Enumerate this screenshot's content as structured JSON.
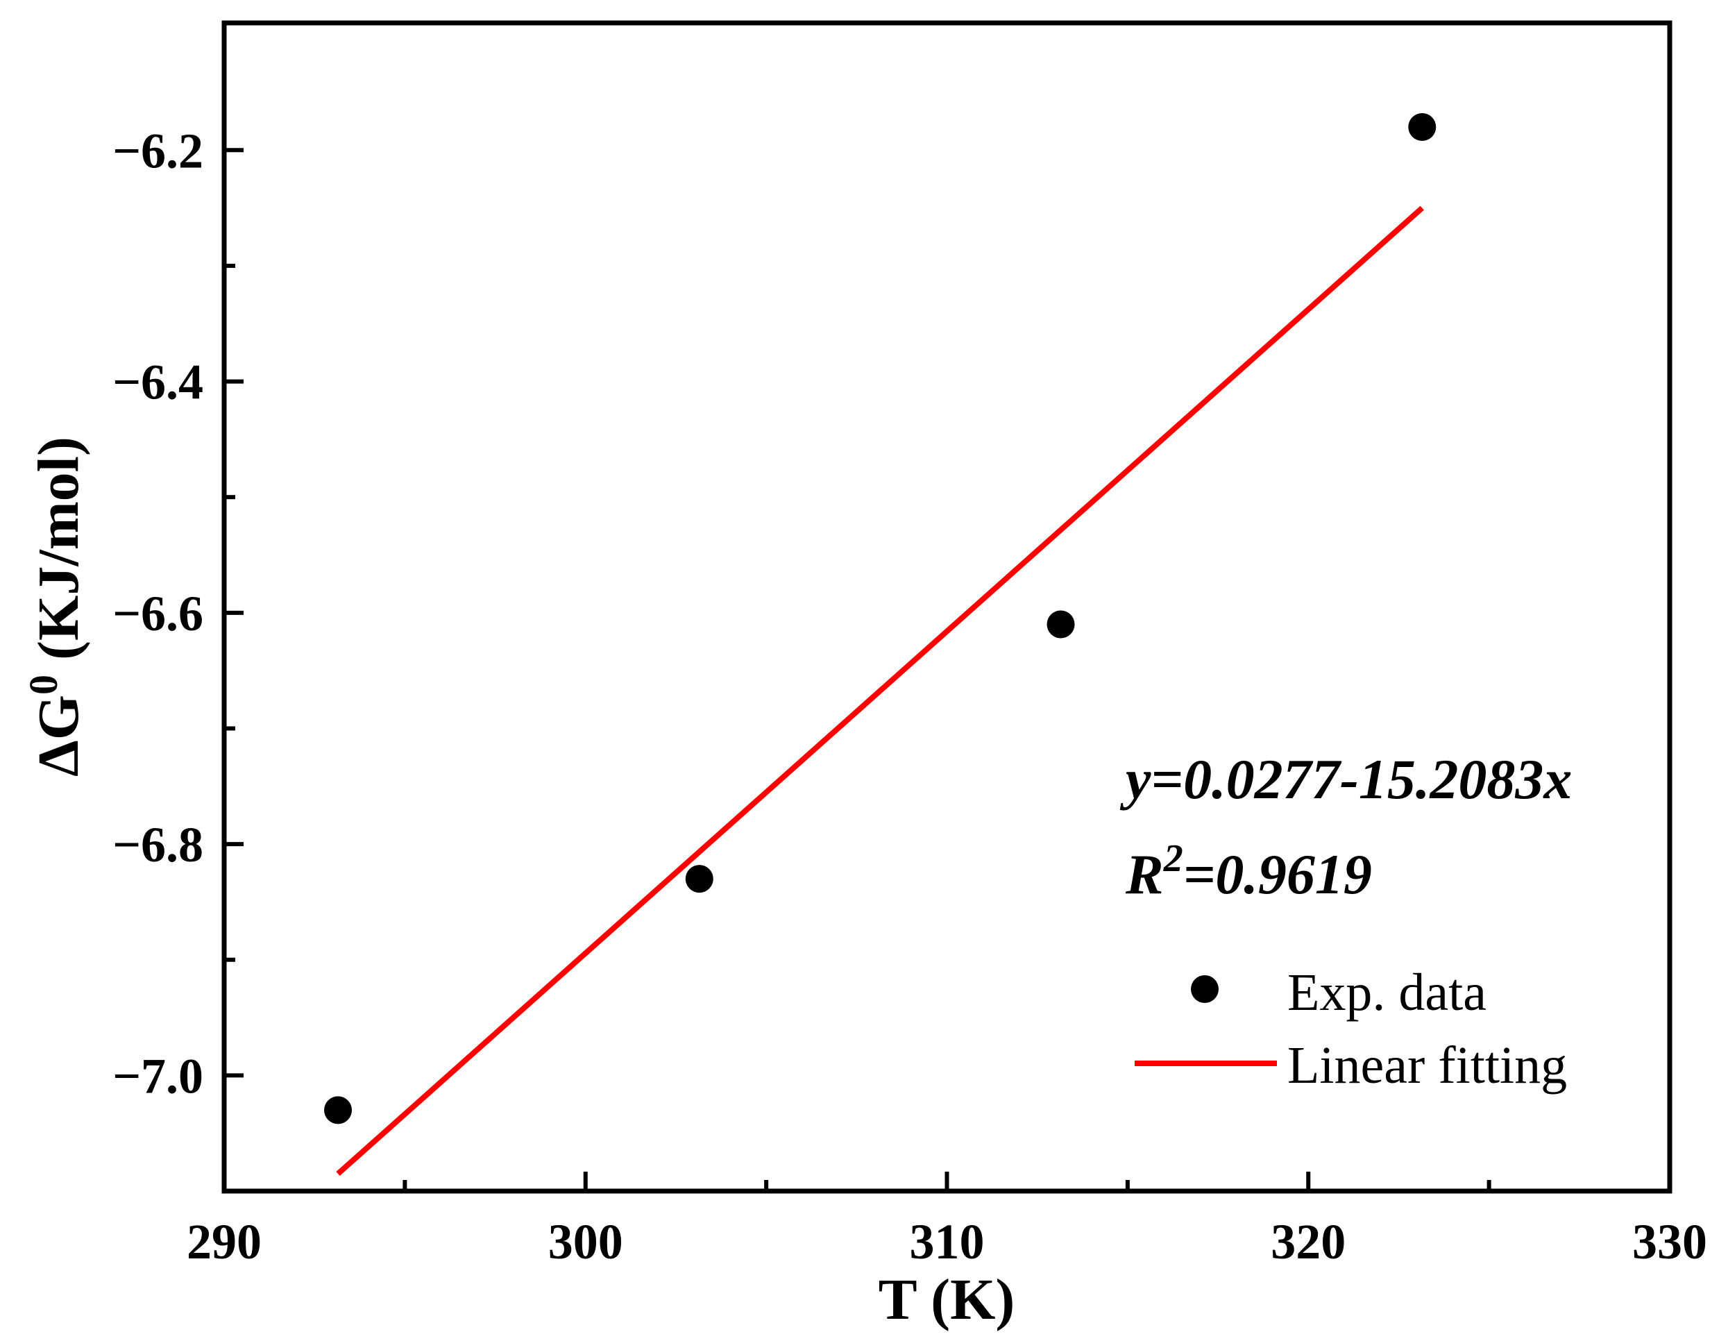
{
  "chart_data": {
    "type": "scatter",
    "xlabel": "T (K)",
    "ylabel": {
      "prefix": "ΔG",
      "sup": "0",
      "suffix": " (KJ/mol)"
    },
    "xlim": [
      290,
      330
    ],
    "ylim": [
      -7.1,
      -6.09
    ],
    "xticks": [
      290,
      300,
      310,
      320,
      330
    ],
    "xtick_labels": [
      "290",
      "300",
      "310",
      "320",
      "330"
    ],
    "xminor": [
      295,
      305,
      315,
      325
    ],
    "yticks": [
      -7.0,
      -6.8,
      -6.6,
      -6.4,
      -6.2
    ],
    "ytick_labels": [
      "−7.0",
      "−6.8",
      "−6.6",
      "−6.4",
      "−6.2"
    ],
    "yminor": [
      -6.9,
      -6.7,
      -6.5,
      -6.3
    ],
    "series": [
      {
        "name": "Exp. data",
        "kind": "scatter",
        "color": "#000000",
        "x": [
          293.15,
          303.15,
          313.15,
          323.15
        ],
        "y": [
          -7.03,
          -6.83,
          -6.61,
          -6.18
        ]
      },
      {
        "name": "Linear fitting",
        "kind": "line",
        "color": "#ff0000",
        "x": [
          293.15,
          323.15
        ],
        "y": [
          -7.085,
          -6.25
        ]
      }
    ],
    "annotations": {
      "equation": "y=0.0277-15.2083x",
      "r2_prefix": "R",
      "r2_sup": "2",
      "r2_value": "=0.9619"
    },
    "legend": {
      "placement": "bottom-right",
      "entries": [
        "Exp. data",
        "Linear fitting"
      ]
    },
    "grid": false
  }
}
